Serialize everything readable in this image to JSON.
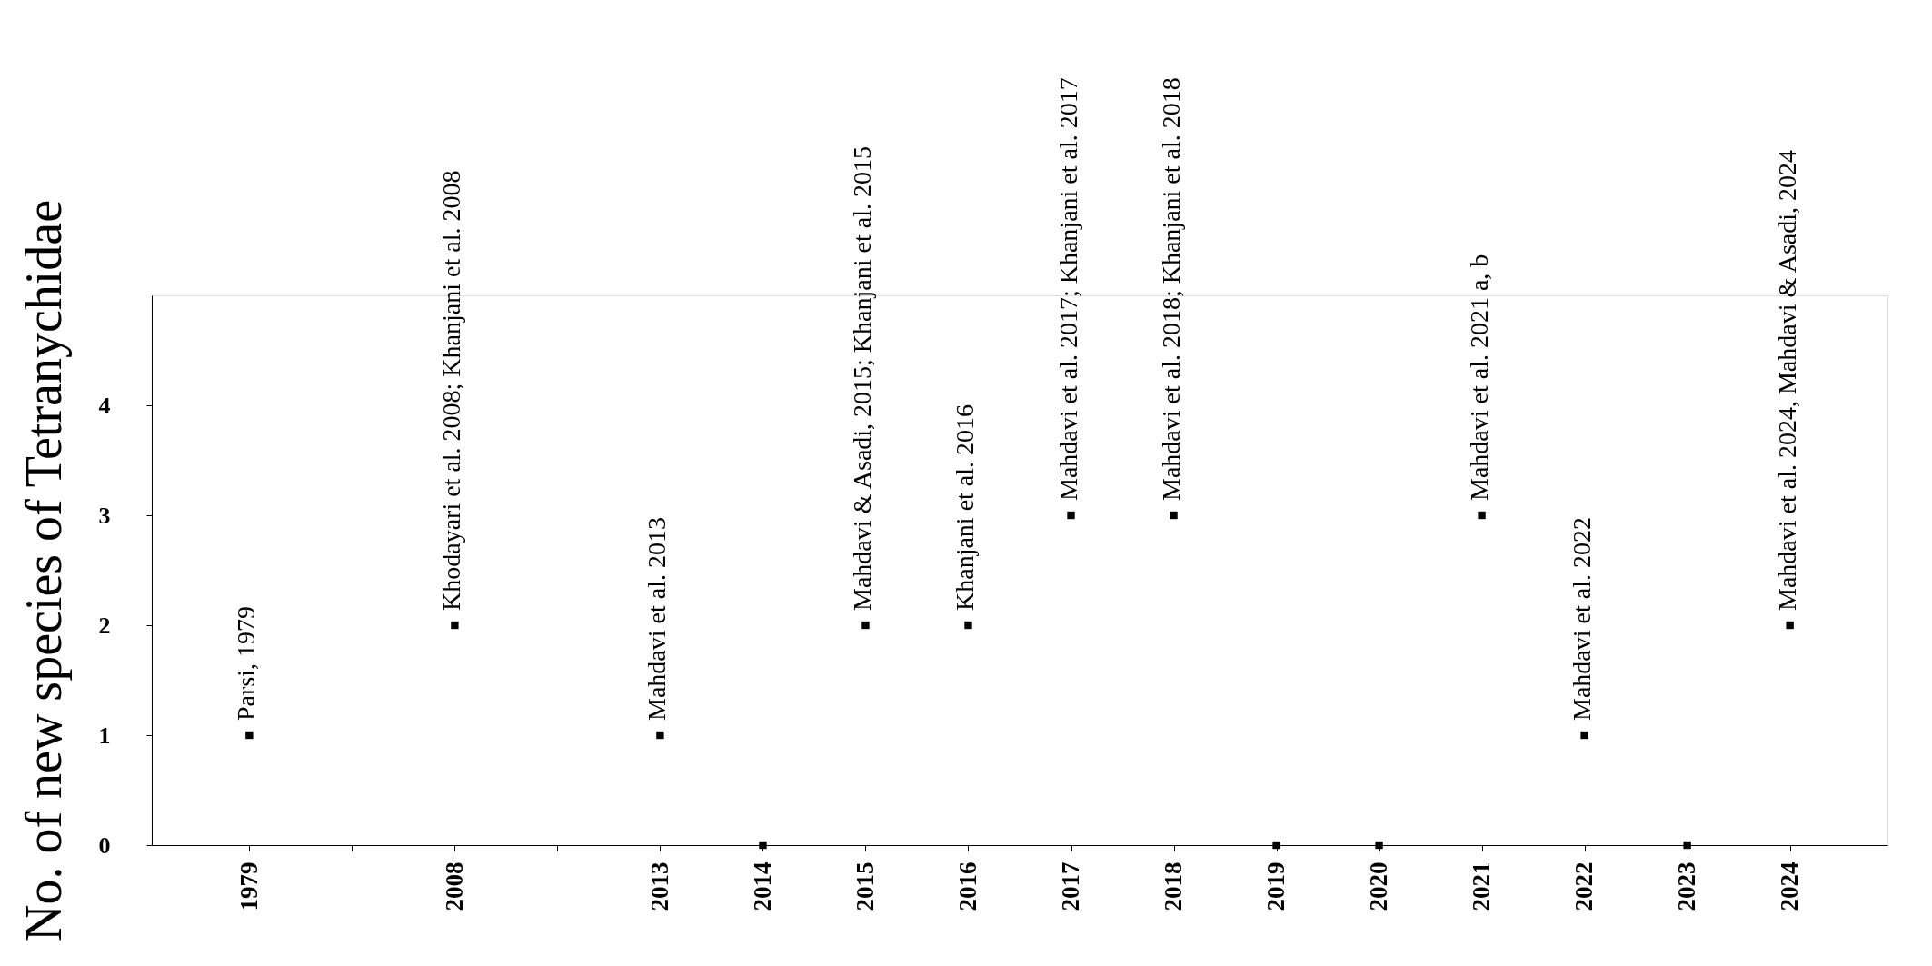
{
  "chart_data": {
    "type": "scatter",
    "ylabel": "No. of new species of Tetranychidae",
    "categories": [
      "1979",
      null,
      "2008",
      null,
      "2013",
      "2014",
      "2015",
      "2016",
      "2017",
      "2018",
      "2019",
      "2020",
      "2021",
      "2022",
      "2023",
      "2024"
    ],
    "series": [
      {
        "color": "#000000",
        "values": [
          1,
          null,
          2,
          null,
          1,
          0,
          2,
          2,
          3,
          3,
          0,
          0,
          3,
          1,
          0,
          2
        ]
      }
    ],
    "ylim": [
      0,
      5
    ],
    "yticks": [
      0,
      1,
      2,
      3,
      4
    ],
    "grid": false,
    "legend": false,
    "marker": "square",
    "annotations": [
      {
        "text": "Parsi, 1979",
        "x": "1979",
        "y": 1
      },
      {
        "text": "Khodayari et al. 2008; Khanjani et al. 2008",
        "x": "2008",
        "y": 2
      },
      {
        "text": "Mahdavi et al. 2013",
        "x": "2013",
        "y": 1
      },
      {
        "text": "Mahdavi & Asadi, 2015; Khanjani et al. 2015",
        "x": "2015",
        "y": 2
      },
      {
        "text": "Khanjani et al. 2016",
        "x": "2016",
        "y": 2
      },
      {
        "text": "Mahdavi et al. 2017; Khanjani et al. 2017",
        "x": "2017",
        "y": 3
      },
      {
        "text": "Mahdavi et al. 2018; Khanjani et al. 2018",
        "x": "2018",
        "y": 3
      },
      {
        "text": "Mahdavi et al. 2021 a, b",
        "x": "2021",
        "y": 3
      },
      {
        "text": "Mahdavi et al. 2022",
        "x": "2022",
        "y": 1
      },
      {
        "text": "Mahdavi et al. 2024, Mahdavi & Asadi, 2024",
        "x": "2024",
        "y": 2
      }
    ]
  }
}
